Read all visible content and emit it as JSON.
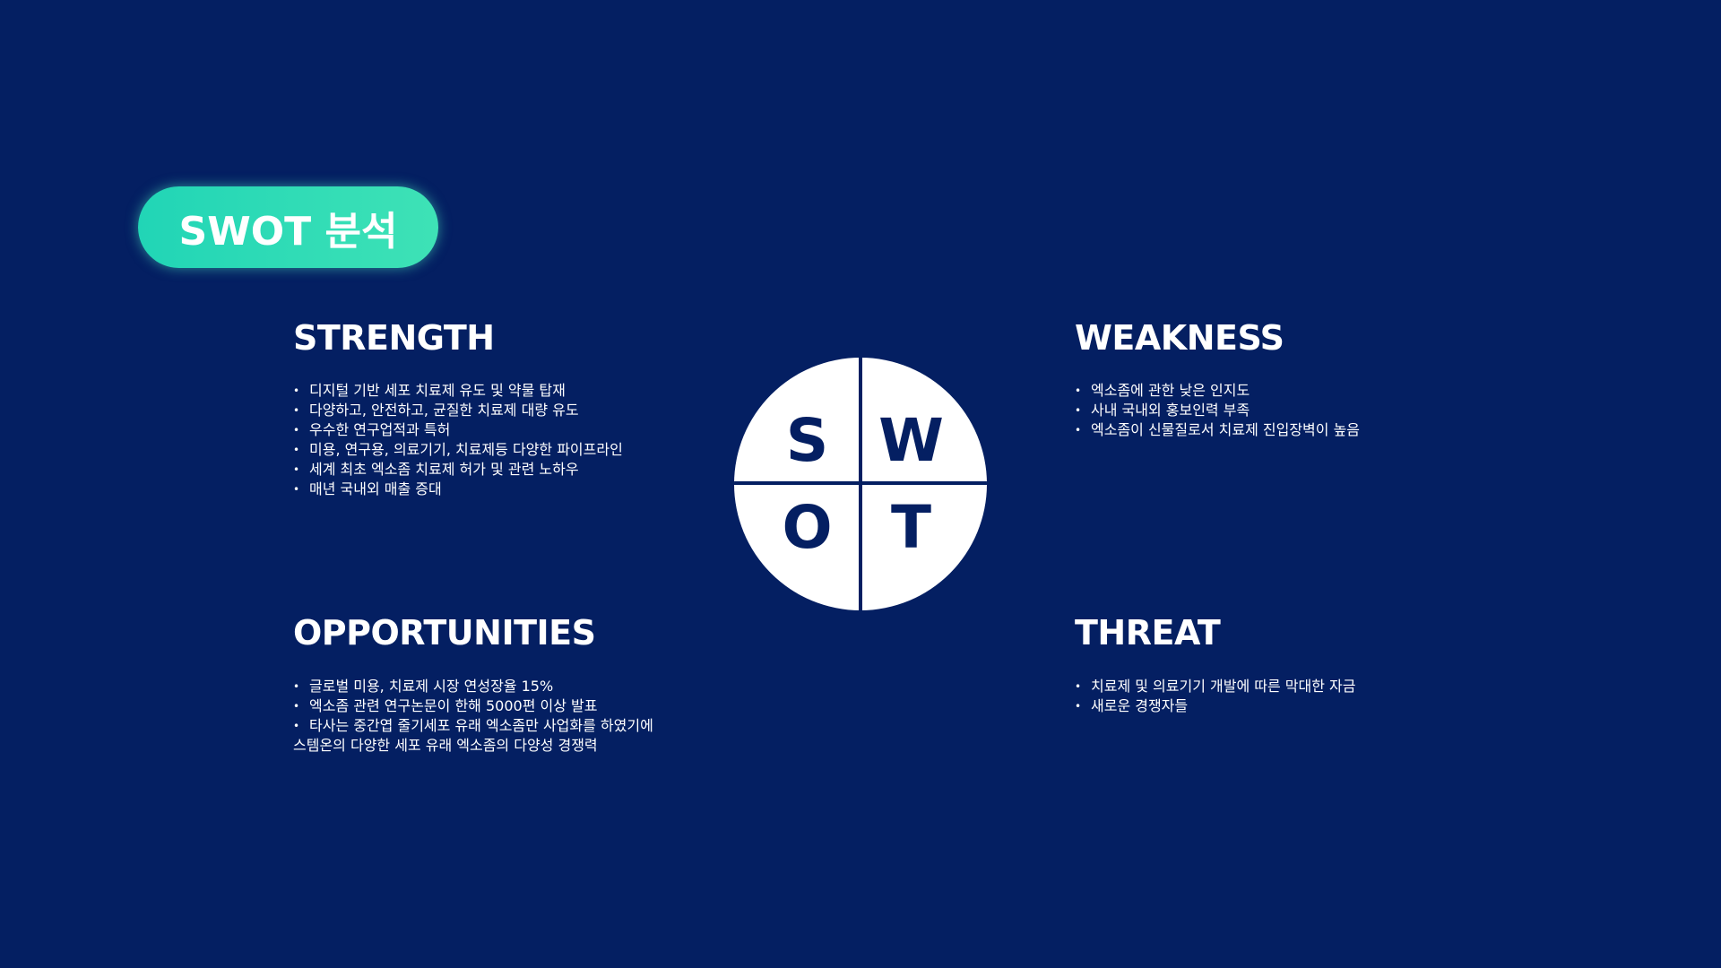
{
  "title": "SWOT 분석",
  "sections": {
    "strength": {
      "heading": "STRENGTH",
      "items": [
        "디지털 기반 세포 치료제 유도 및 약물 탑재",
        "다양하고, 안전하고, 균질한 치료제 대량 유도",
        "우수한 연구업적과 특허",
        "미용, 연구용, 의료기기, 치료제등 다양한 파이프라인",
        "세계 최초 엑소좀 치료제 허가 및 관련 노하우",
        "매년 국내외 매출 증대"
      ]
    },
    "weakness": {
      "heading": "WEAKNESS",
      "items": [
        "엑소좀에 관한 낮은 인지도",
        "사내 국내외 홍보인력 부족",
        "엑소좀이 신물질로서 치료제 진입장벽이 높음"
      ]
    },
    "opportunities": {
      "heading": "OPPORTUNITIES",
      "items": [
        "글로벌 미용, 치료제 시장 연성장율 15%",
        "엑소좀 관련 연구논문이 한해 5000편 이상 발표",
        "타사는 중간엽 줄기세포 유래 엑소좀만 사업화를 하였기에",
        "스템온의 다양한 세포 유래 엑소좀의 다양성 경쟁력"
      ]
    },
    "threat": {
      "heading": "THREAT",
      "items": [
        "치료제 및 의료기기 개발에 따른 막대한 자금",
        "새로운 경쟁자들"
      ]
    }
  },
  "swot_letters": {
    "s": "S",
    "w": "W",
    "o": "O",
    "t": "T"
  },
  "colors": {
    "background": "#041f62",
    "pill_accent": "#2ad9b6",
    "text": "#ffffff"
  }
}
